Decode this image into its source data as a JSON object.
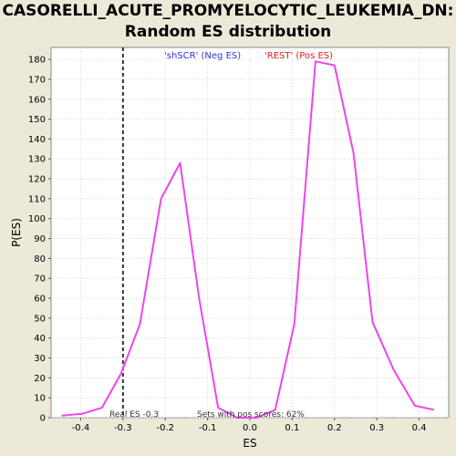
{
  "chart_data": {
    "type": "line",
    "title": "CASORELLI_ACUTE_PROMYELOCYTIC_LEUKEMIA_DN:",
    "subtitle": "Random ES distribution",
    "xlabel": "ES",
    "ylabel": "P(ES)",
    "xlim": [
      -0.47,
      0.47
    ],
    "ylim": [
      0,
      186
    ],
    "xticks": [
      "-0.4",
      "-0.3",
      "-0.2",
      "-0.1",
      "0.0",
      "0.1",
      "0.2",
      "0.3",
      "0.4"
    ],
    "yticks": [
      "0",
      "10",
      "20",
      "30",
      "40",
      "50",
      "60",
      "70",
      "80",
      "90",
      "100",
      "110",
      "120",
      "130",
      "140",
      "150",
      "160",
      "170",
      "180"
    ],
    "grid": true,
    "legend": [
      {
        "label": "'shSCR' (Neg ES)",
        "color": "#3333cc"
      },
      {
        "label": "'REST' (Pos ES)",
        "color": "#dd2222"
      }
    ],
    "series": [
      {
        "color": "#ee44ee",
        "x": [
          -0.445,
          -0.395,
          -0.35,
          -0.305,
          -0.26,
          -0.21,
          -0.165,
          -0.12,
          -0.075,
          -0.03,
          0.015,
          0.06,
          0.105,
          0.155,
          0.2,
          0.245,
          0.29,
          0.34,
          0.39,
          0.435
        ],
        "y": [
          1,
          2,
          5,
          22,
          47,
          110,
          128,
          60,
          5,
          0,
          0,
          4,
          47,
          179,
          177,
          133,
          48,
          24,
          6,
          4
        ]
      }
    ],
    "real_es": -0.3,
    "annotations": {
      "real_es_label": "Real ES -0.3",
      "pos_scores_label": "Sets with pos scores: 62%"
    }
  }
}
